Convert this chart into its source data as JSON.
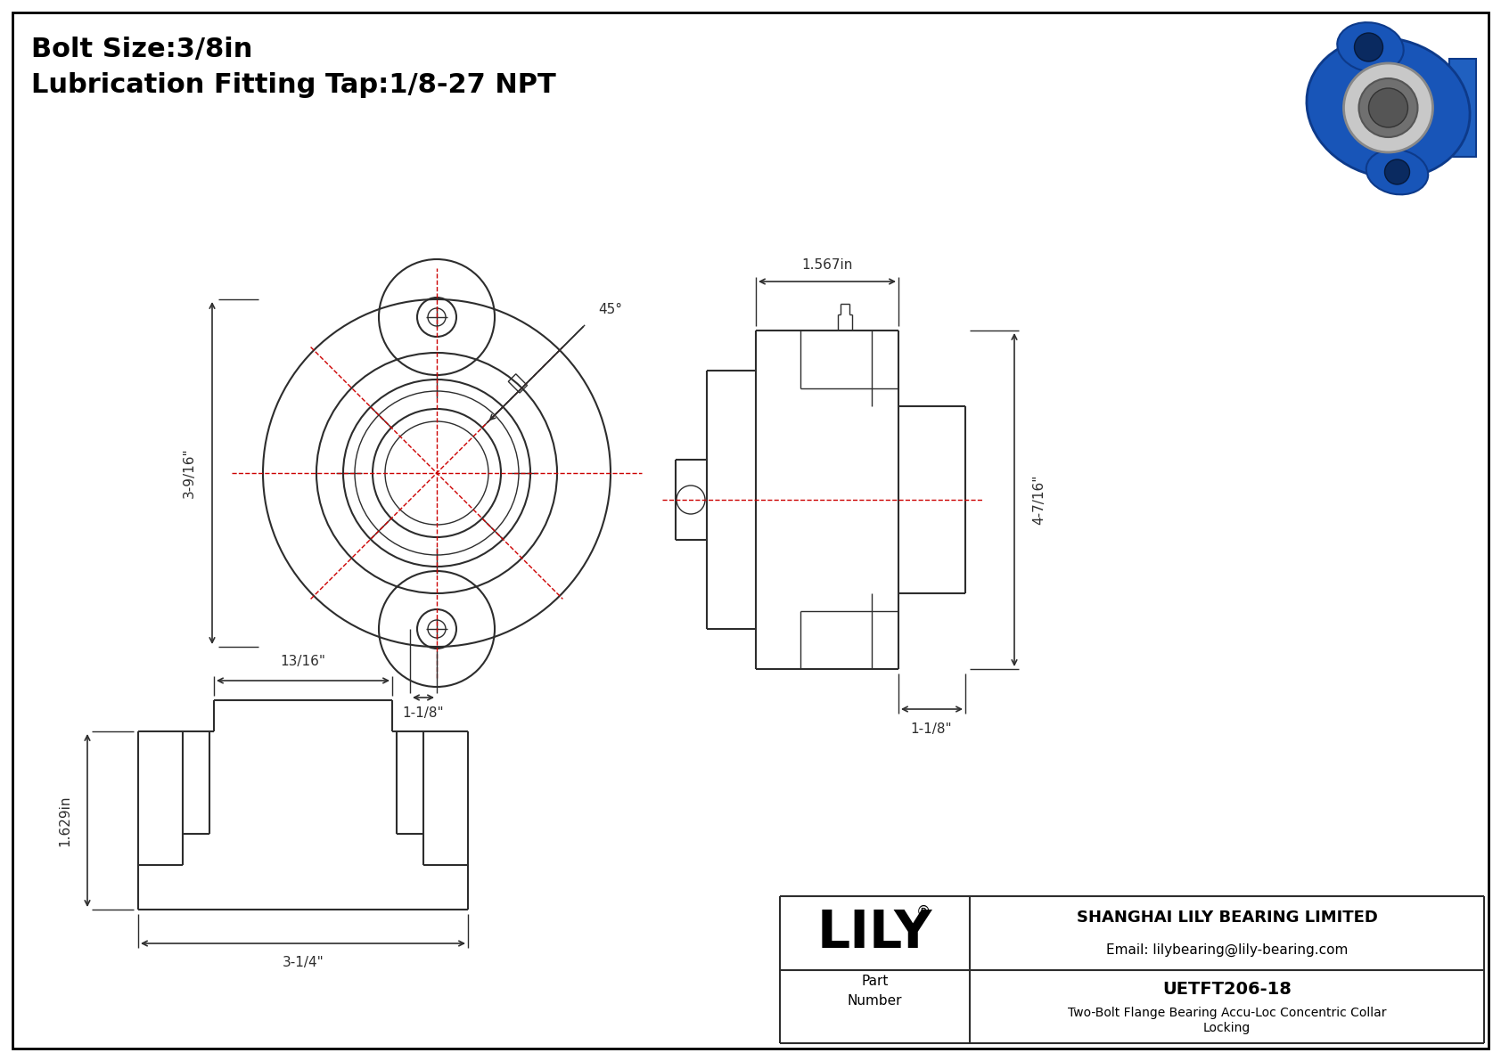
{
  "bg_color": "#ffffff",
  "border_color": "#000000",
  "line_color": "#2d2d2d",
  "dim_color": "#2d2d2d",
  "red_color": "#cc0000",
  "title_line1": "Bolt Size:3/8in",
  "title_line2": "Lubrication Fitting Tap:1/8-27 NPT",
  "dim_labels": {
    "bolt_circle": "3-9/16\"",
    "bolt_spacing": "1-1/8\"",
    "angle": "45°",
    "side_height": "4-7/16\"",
    "side_width_top": "1.567in",
    "side_bottom": "1-1/8\"",
    "bottom_width": "3-1/4\"",
    "bottom_height": "1.629in",
    "bottom_top": "13/16\""
  },
  "company": "SHANGHAI LILY BEARING LIMITED",
  "email": "Email: lilybearing@lily-bearing.com",
  "part_number": "UETFT206-18",
  "description": "Two-Bolt Flange Bearing Accu-Loc Concentric Collar\nLocking",
  "lily_text": "LILY"
}
